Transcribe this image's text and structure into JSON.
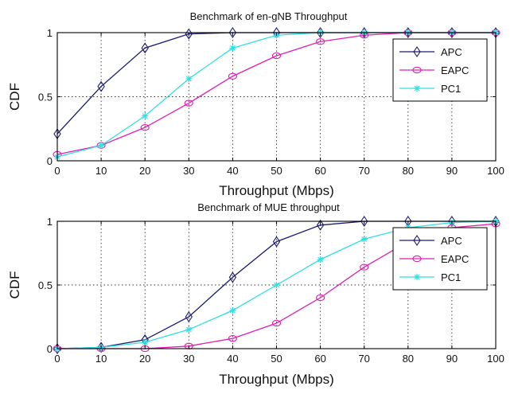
{
  "chart_data": [
    {
      "type": "line",
      "title": "Benchmark of en-gNB Throughput",
      "xlabel": "Throughput (Mbps)",
      "ylabel": "CDF",
      "xlim": [
        0,
        100
      ],
      "ylim": [
        0,
        1
      ],
      "x_ticks": [
        "0",
        "10",
        "20",
        "30",
        "40",
        "50",
        "60",
        "70",
        "80",
        "90",
        "100"
      ],
      "y_ticks": [
        "0",
        "0.5",
        "1"
      ],
      "grid": true,
      "legend_position": "top-right",
      "x": [
        0,
        10,
        20,
        30,
        40,
        50,
        60,
        70,
        80,
        90,
        100
      ],
      "series": [
        {
          "name": "APC",
          "color": "#1a1a6e",
          "marker": "diamond",
          "values": [
            0.21,
            0.58,
            0.88,
            0.99,
            1.0,
            1.0,
            1.0,
            1.0,
            1.0,
            1.0,
            1.0
          ]
        },
        {
          "name": "EAPC",
          "color": "#e020b0",
          "marker": "circle",
          "values": [
            0.05,
            0.12,
            0.26,
            0.45,
            0.66,
            0.82,
            0.93,
            0.98,
            1.0,
            1.0,
            1.0
          ]
        },
        {
          "name": "PC1",
          "color": "#30e0e0",
          "marker": "star",
          "values": [
            0.03,
            0.12,
            0.35,
            0.64,
            0.88,
            0.98,
            1.0,
            1.0,
            1.0,
            1.0,
            1.0
          ]
        }
      ]
    },
    {
      "type": "line",
      "title": "Benchmark of MUE throughput",
      "xlabel": "Throughput (Mbps)",
      "ylabel": "CDF",
      "xlim": [
        0,
        100
      ],
      "ylim": [
        0,
        1
      ],
      "x_ticks": [
        "0",
        "10",
        "20",
        "30",
        "40",
        "50",
        "60",
        "70",
        "80",
        "90",
        "100"
      ],
      "y_ticks": [
        "0",
        "0.5",
        "1"
      ],
      "grid": true,
      "legend_position": "top-right",
      "x": [
        0,
        10,
        20,
        30,
        40,
        50,
        60,
        70,
        80,
        90,
        100
      ],
      "series": [
        {
          "name": "APC",
          "color": "#1a1a6e",
          "marker": "diamond",
          "values": [
            0.0,
            0.01,
            0.07,
            0.25,
            0.56,
            0.84,
            0.97,
            1.0,
            1.0,
            1.0,
            1.0
          ]
        },
        {
          "name": "EAPC",
          "color": "#e020b0",
          "marker": "circle",
          "values": [
            0.0,
            0.0,
            0.0,
            0.02,
            0.08,
            0.2,
            0.4,
            0.64,
            0.84,
            0.95,
            0.98
          ]
        },
        {
          "name": "PC1",
          "color": "#30e0e0",
          "marker": "star",
          "values": [
            0.0,
            0.01,
            0.05,
            0.15,
            0.3,
            0.5,
            0.7,
            0.86,
            0.95,
            0.99,
            1.0
          ]
        }
      ]
    }
  ]
}
